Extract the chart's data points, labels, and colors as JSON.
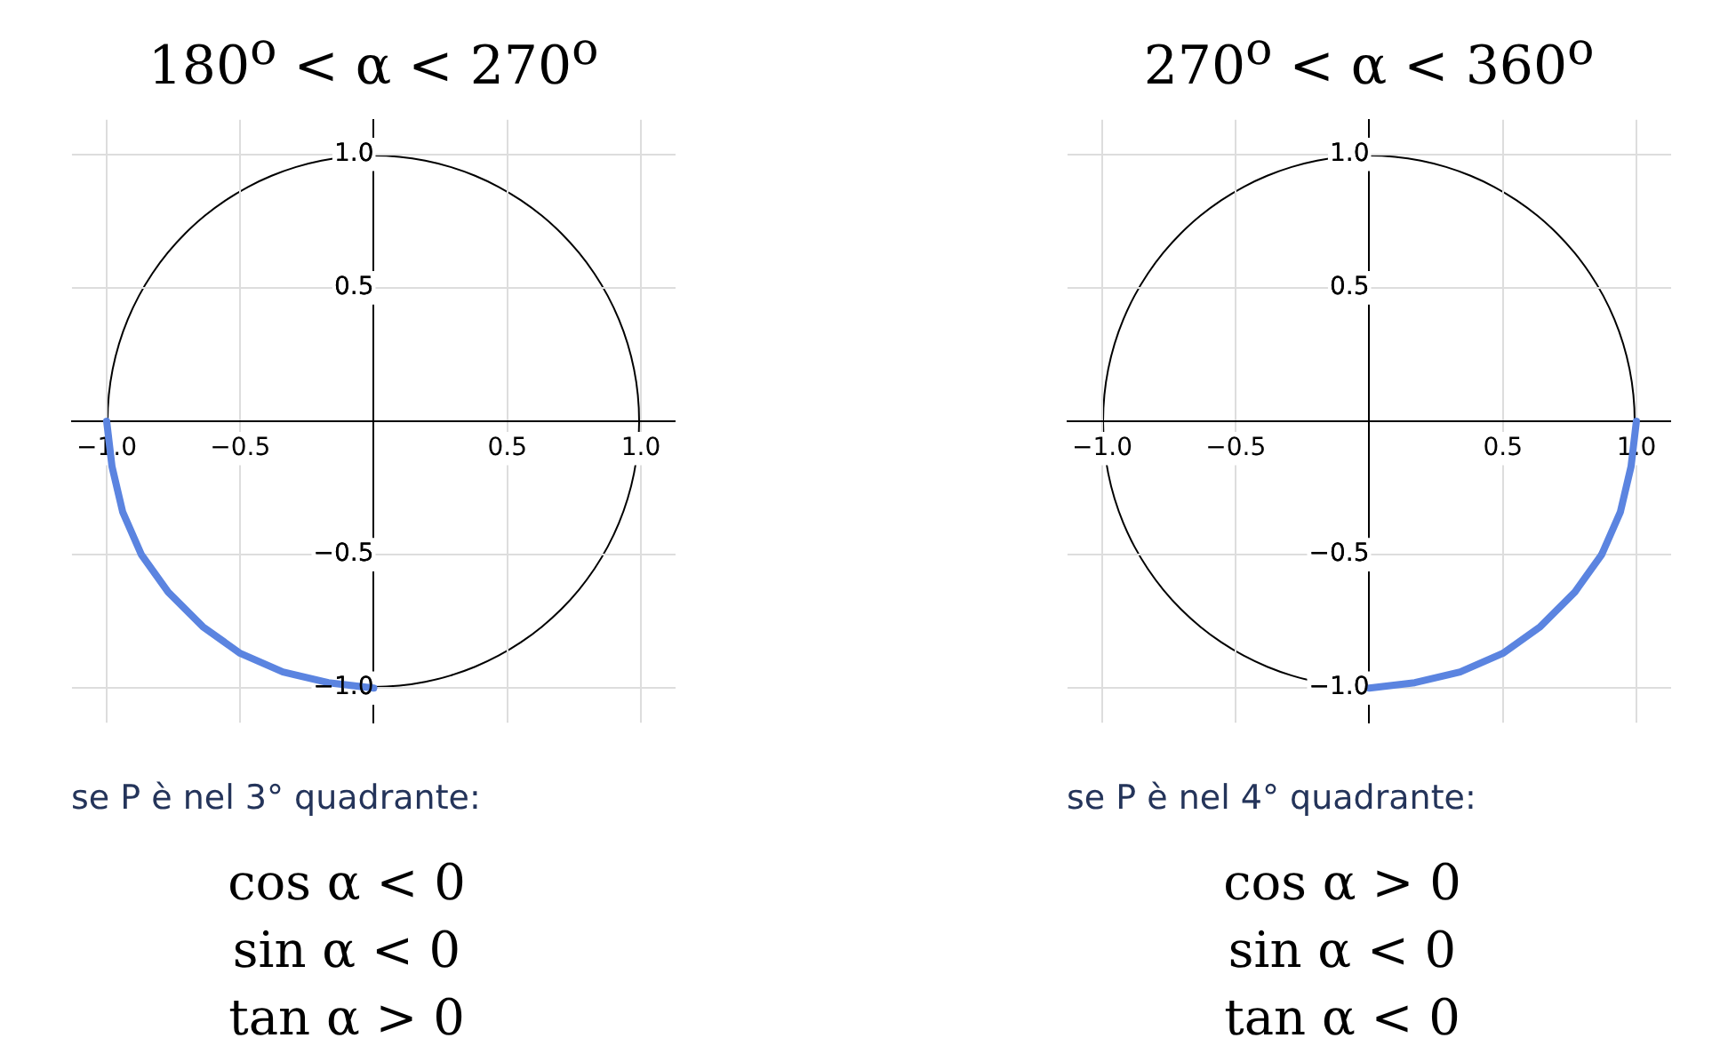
{
  "chart_data": [
    {
      "type": "line",
      "title": "180$^{o}$ < α < 270$^{o}$",
      "series": [
        {
          "color": "#5b84e0",
          "x": [
            -1,
            -0.98,
            -0.94,
            -0.87,
            -0.77,
            -0.64,
            -0.5,
            -0.34,
            -0.17,
            0
          ],
          "values": [
            0,
            -0.17,
            -0.34,
            -0.5,
            -0.64,
            -0.77,
            -0.87,
            -0.94,
            -0.98,
            -1
          ]
        }
      ],
      "xlim": [
        -1.13,
        1.13
      ],
      "ylim": [
        -1.13,
        1.13
      ],
      "xticks": [
        {
          "value": -1,
          "label": "−1.0"
        },
        {
          "value": -0.5,
          "label": "−0.5"
        },
        0.5,
        {
          "value": 1,
          "label": "1.0"
        }
      ],
      "yticks": [
        {
          "value": -1,
          "label": "−1.0"
        },
        {
          "value": -0.5,
          "label": "−0.5"
        },
        0.5,
        {
          "value": 1,
          "label": "1.0"
        }
      ],
      "grid": true,
      "legend": false,
      "marker": "none",
      "line_style": "solid",
      "annotations": [
        "se P è nel 3° quadrante:",
        "cos α < 0",
        "sin α < 0",
        "tan α > 0"
      ]
    },
    {
      "type": "line",
      "title": "270$^{o}$ < α < 360$^{o}$",
      "series": [
        {
          "color": "#5b84e0",
          "x": [
            0,
            0.17,
            0.34,
            0.5,
            0.64,
            0.77,
            0.87,
            0.94,
            0.98,
            1
          ],
          "values": [
            -1,
            -0.98,
            -0.94,
            -0.87,
            -0.77,
            -0.64,
            -0.5,
            -0.34,
            -0.17,
            0
          ]
        }
      ],
      "xlim": [
        -1.13,
        1.13
      ],
      "ylim": [
        -1.13,
        1.13
      ],
      "xticks": [
        {
          "value": -1,
          "label": "−1.0"
        },
        {
          "value": -0.5,
          "label": "−0.5"
        },
        0.5,
        {
          "value": 1,
          "label": "1.0"
        }
      ],
      "yticks": [
        {
          "value": -1,
          "label": "−1.0"
        },
        {
          "value": -0.5,
          "label": "−0.5"
        },
        0.5,
        {
          "value": 1,
          "label": "1.0"
        }
      ],
      "grid": true,
      "legend": false,
      "marker": "none",
      "line_style": "solid",
      "annotations": [
        "se P è nel 4° quadrante:",
        "cos α > 0",
        "sin α < 0",
        "tan α < 0"
      ]
    }
  ]
}
